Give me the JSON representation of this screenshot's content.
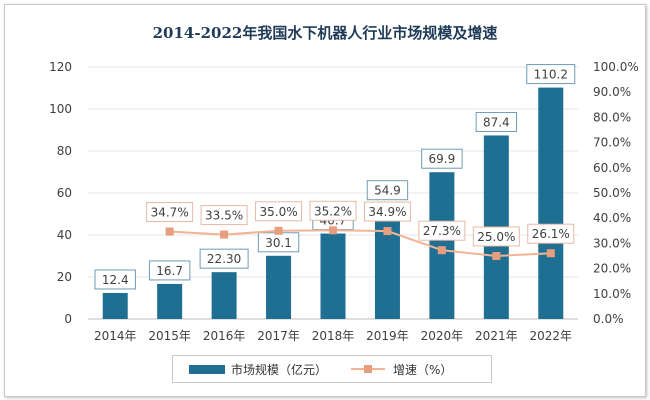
{
  "chart_data": {
    "type": "bar",
    "title": "2014-2022年我国水下机器人行业市场规模及增速",
    "categories": [
      "2014年",
      "2015年",
      "2016年",
      "2017年",
      "2018年",
      "2019年",
      "2020年",
      "2021年",
      "2022年"
    ],
    "series": [
      {
        "name": "市场规模（亿元）",
        "type": "bar",
        "axis": "left",
        "values": [
          12.4,
          16.7,
          22.3,
          30.1,
          40.7,
          54.9,
          69.9,
          87.4,
          110.2
        ],
        "labels": [
          "12.4",
          "16.7",
          "22.30",
          "30.1",
          "40.7",
          "54.9",
          "69.9",
          "87.4",
          "110.2"
        ],
        "color": "#1f6f93"
      },
      {
        "name": "增速（%）",
        "type": "line",
        "axis": "right",
        "values": [
          null,
          34.7,
          33.5,
          35.0,
          35.2,
          34.9,
          27.3,
          25.0,
          26.1
        ],
        "labels": [
          "",
          "34.7%",
          "33.5%",
          "35.0%",
          "35.2%",
          "34.9%",
          "27.3%",
          "25.0%",
          "26.1%"
        ],
        "color": "#f2b396",
        "marker_color": "#e89d7f"
      }
    ],
    "y_left": {
      "min": 0,
      "max": 120,
      "step": 20,
      "ticks": [
        "0",
        "20",
        "40",
        "60",
        "80",
        "100",
        "120"
      ]
    },
    "y_right": {
      "min": 0,
      "max": 100,
      "step": 10,
      "ticks": [
        "0.0%",
        "10.0%",
        "20.0%",
        "30.0%",
        "40.0%",
        "50.0%",
        "60.0%",
        "70.0%",
        "80.0%",
        "90.0%",
        "100.0%"
      ]
    },
    "grid": true,
    "legend_position": "bottom"
  },
  "legend": {
    "bar_label": "市场规模（亿元）",
    "line_label": "增速（%）"
  }
}
